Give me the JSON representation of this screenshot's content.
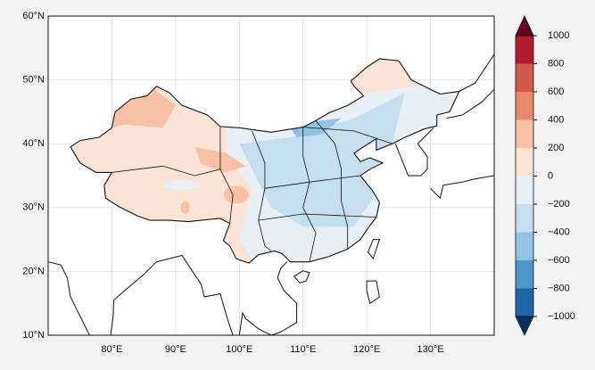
{
  "chart_data": {
    "type": "map",
    "xlim": [
      70,
      140
    ],
    "ylim": [
      10,
      60
    ],
    "xticks": [
      {
        "value": 80,
        "label": "80°E"
      },
      {
        "value": 90,
        "label": "90°E"
      },
      {
        "value": 100,
        "label": "100°E"
      },
      {
        "value": 110,
        "label": "110°E"
      },
      {
        "value": 120,
        "label": "120°E"
      },
      {
        "value": 130,
        "label": "130°E"
      }
    ],
    "yticks": [
      {
        "value": 10,
        "label": "10°N"
      },
      {
        "value": 20,
        "label": "20°N"
      },
      {
        "value": 30,
        "label": "30°N"
      },
      {
        "value": 40,
        "label": "40°N"
      },
      {
        "value": 50,
        "label": "50°N"
      },
      {
        "value": 60,
        "label": "60°N"
      }
    ],
    "grid": true,
    "cticks": [
      {
        "value": -1000,
        "label": "−1000"
      },
      {
        "value": -800,
        "label": "−800"
      },
      {
        "value": -600,
        "label": "−600"
      },
      {
        "value": -400,
        "label": "−400"
      },
      {
        "value": -200,
        "label": "−200"
      },
      0,
      200,
      400,
      600,
      800,
      1000
    ],
    "colors": [
      "#1f64a9",
      "#4d97c8",
      "#91c3e0",
      "#c5dff0",
      "#e8f0f5",
      "#fbe3d6",
      "#f8c0a4",
      "#e98a6d",
      "#d05a48",
      "#b31b2c"
    ],
    "extend_colors": [
      "#053061",
      "#67001f"
    ]
  }
}
